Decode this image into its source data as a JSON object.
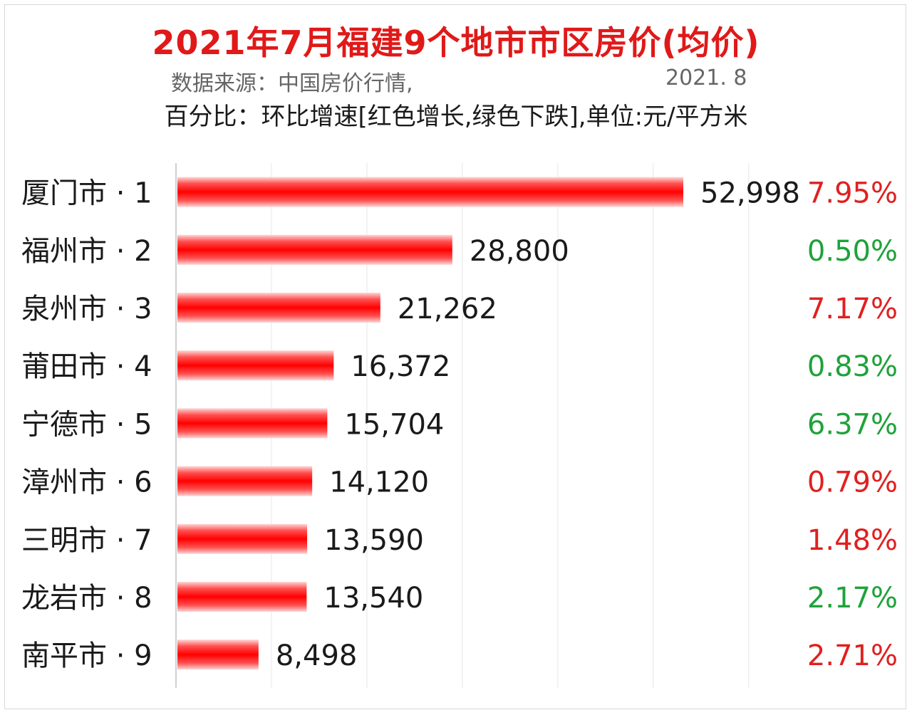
{
  "header": {
    "title": "2021年7月福建9个地市市区房价(均价)",
    "source": "数据来源：中国房价行情,",
    "date": "2021. 8",
    "subtitle": "百分比：环比增速[红色增长,绿色下跌],单位:元/平方米"
  },
  "colors": {
    "bar": "#ff1a1a",
    "increase": "#e02020",
    "decrease": "#1fa23a",
    "title": "#e01919"
  },
  "chart_data": {
    "type": "bar",
    "orientation": "horizontal",
    "title": "2021年7月福建9个地市市区房价(均价)",
    "categories": [
      "厦门市 · 1",
      "福州市 · 2",
      "泉州市 · 3",
      "莆田市 · 4",
      "宁德市 · 5",
      "漳州市 · 6",
      "三明市 · 7",
      "龙岩市 · 8",
      "南平市 · 9"
    ],
    "series": [
      {
        "values": [
          52998,
          28800,
          21262,
          16372,
          15704,
          14120,
          13590,
          13540,
          8498
        ],
        "value_labels": [
          "52,998",
          "28,800",
          "21,262",
          "16,372",
          "15,704",
          "14,120",
          "13,590",
          "13,540",
          "8,498"
        ]
      }
    ],
    "percent_labels": [
      "7.95%",
      "0.50%",
      "7.17%",
      "0.83%",
      "6.37%",
      "0.79%",
      "1.48%",
      "2.17%",
      "2.71%"
    ],
    "percent_trend": [
      "increase",
      "decrease",
      "increase",
      "decrease",
      "decrease",
      "increase",
      "increase",
      "decrease",
      "increase"
    ],
    "xlim": [
      0,
      60000
    ],
    "grid": true
  }
}
